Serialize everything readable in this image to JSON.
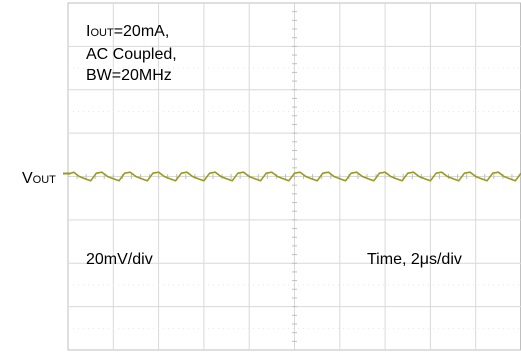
{
  "chart_data": {
    "type": "line",
    "annotations": {
      "iout_main": "I",
      "iout_sub": "OUT",
      "iout_value": "=20mA,",
      "coupling": "AC Coupled,",
      "bandwidth": "BW=20MHz",
      "vout_main": "V",
      "vout_sub": "OUT",
      "vertical_scale": "20mV/div",
      "time_scale": "Time, 2μs/div"
    },
    "grid": true,
    "divisions": {
      "x": 10,
      "y": 8
    },
    "xlim": [
      0,
      20
    ],
    "x_unit": "μs",
    "ylim": [
      -80,
      80
    ],
    "y_unit": "mV",
    "trace_color": "#9a9a1e",
    "series": [
      {
        "ripple_period_us": 1.25,
        "ripple_amplitude_mv_pp": 4,
        "x": [
          0,
          0.25,
          0.5,
          0.75,
          1.0,
          1.25,
          1.5,
          1.75,
          2.0,
          2.25,
          2.5,
          2.75,
          3.0,
          3.25,
          3.5,
          3.75,
          4.0,
          4.25,
          4.5,
          4.75,
          5.0,
          5.25,
          5.5,
          5.75,
          6.0,
          6.25,
          6.5,
          6.75,
          7.0,
          7.25,
          7.5,
          7.75,
          8.0,
          8.25,
          8.5,
          8.75,
          9.0,
          9.25,
          9.5,
          9.75,
          10.0,
          10.25,
          10.5,
          10.75,
          11.0,
          11.25,
          11.5,
          11.75,
          12.0,
          12.25,
          12.5,
          12.75,
          13.0,
          13.25,
          13.5,
          13.75,
          14.0,
          14.25,
          14.5,
          14.75,
          15.0,
          15.25,
          15.5,
          15.75,
          16.0,
          16.25,
          16.5,
          16.75,
          17.0,
          17.25,
          17.5,
          17.75,
          18.0,
          18.25,
          18.5,
          18.75,
          19.0,
          19.25,
          19.5,
          19.75,
          20.0
        ],
        "y": [
          1,
          2,
          0,
          -1,
          -2,
          1.5,
          2,
          0,
          -1,
          -2,
          1.5,
          2,
          0,
          -1,
          -2,
          1.5,
          2,
          0,
          -1,
          -2,
          1.5,
          2,
          0,
          -1,
          -2,
          1.5,
          2,
          0,
          -1,
          -2,
          1.5,
          2,
          0,
          -1,
          -2,
          1.5,
          2,
          0,
          -1,
          -2,
          1.5,
          2,
          0,
          -1,
          -2,
          1.5,
          2,
          0,
          -1,
          -2,
          1.5,
          2,
          0,
          -1,
          -2,
          1.5,
          2,
          0,
          -1,
          -2,
          1.5,
          2,
          0,
          -1,
          -2,
          1.5,
          2,
          0,
          -1,
          -2,
          1.5,
          2,
          0,
          -1,
          -2,
          1.5,
          2,
          0,
          -1,
          -2,
          1.5
        ]
      }
    ]
  }
}
